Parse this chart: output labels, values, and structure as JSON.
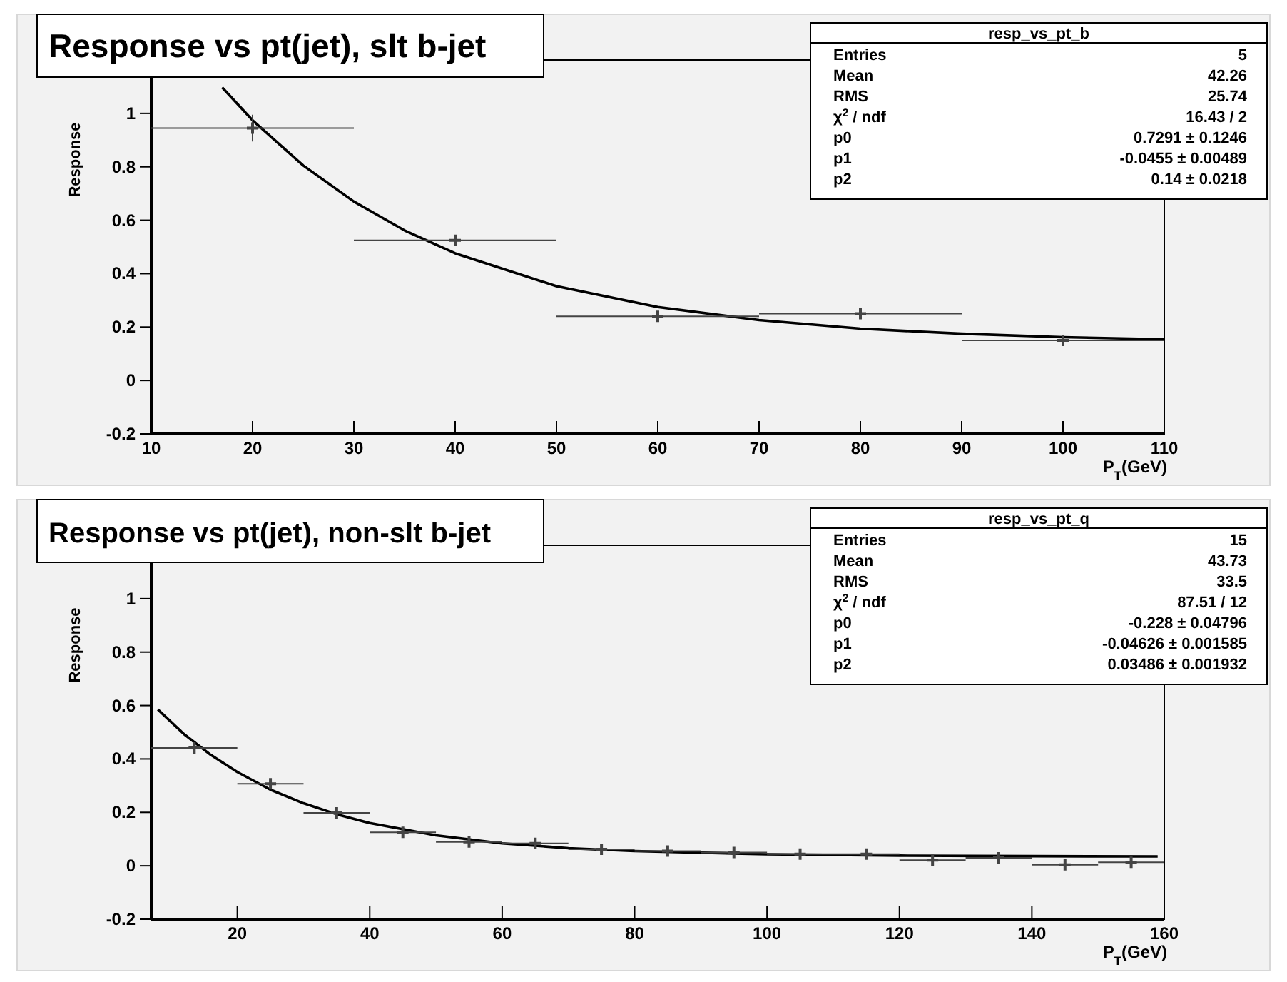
{
  "chart_data": [
    {
      "type": "scatter",
      "title": "Response vs pt(jet), slt b-jet",
      "xlabel": "P$_{T}$(GeV)",
      "ylabel": "Response",
      "xlim": [
        10,
        110
      ],
      "ylim": [
        -0.2,
        1.2
      ],
      "xticks": [
        10,
        20,
        30,
        40,
        50,
        60,
        70,
        80,
        90,
        100,
        110
      ],
      "yticks": [
        -0.2,
        0,
        0.2,
        0.4,
        0.6,
        0.8,
        1
      ],
      "grid": false,
      "marker": "cross",
      "series": [
        {
          "type": "scatter",
          "color": "#444444",
          "x": [
            20,
            40,
            60,
            80,
            100
          ],
          "values": [
            0.945,
            0.525,
            0.24,
            0.25,
            0.15
          ],
          "xerrors": [
            10,
            10,
            10,
            10,
            10
          ],
          "errors": [
            0.05,
            0.02,
            0.01,
            0.015,
            0.015
          ]
        },
        {
          "type": "line",
          "marker": "none",
          "color": "#000000",
          "x": [
            17,
            20,
            25,
            30,
            35,
            40,
            50,
            60,
            70,
            80,
            90,
            100,
            110
          ],
          "values": [
            1.097,
            0.974,
            0.805,
            0.67,
            0.562,
            0.476,
            0.353,
            0.275,
            0.226,
            0.194,
            0.175,
            0.162,
            0.154
          ]
        }
      ],
      "annotations": [
        "resp_vs_pt_b",
        "Entries",
        "5",
        "Mean",
        "42.26",
        "RMS",
        "25.74",
        "χ$^{2}$ / ndf",
        "16.43 / 2",
        "p0",
        "0.7291 ± 0.1246",
        "p1",
        "-0.0455 ± 0.00489",
        "p2",
        "0.14 ± 0.0218"
      ]
    },
    {
      "type": "scatter",
      "title": "Response vs pt(jet), non-slt b-jet",
      "xlabel": "P$_{T}$(GeV)",
      "ylabel": "Response",
      "xlim": [
        7,
        160
      ],
      "ylim": [
        -0.2,
        1.2
      ],
      "xticks": [
        20,
        40,
        60,
        80,
        100,
        120,
        140,
        160
      ],
      "yticks": [
        -0.2,
        0,
        0.2,
        0.4,
        0.6,
        0.8,
        1
      ],
      "grid": false,
      "marker": "cross",
      "series": [
        {
          "type": "scatter",
          "color": "#444444",
          "x": [
            13.5,
            25,
            35,
            45,
            55,
            65,
            75,
            85,
            95,
            105,
            115,
            125,
            135,
            145,
            155
          ],
          "values": [
            0.441,
            0.307,
            0.198,
            0.125,
            0.089,
            0.084,
            0.062,
            0.055,
            0.05,
            0.044,
            0.044,
            0.021,
            0.03,
            0.004,
            0.013
          ],
          "xerrors": [
            6.5,
            5,
            5,
            5,
            5,
            5,
            5,
            5,
            5,
            5,
            5,
            5,
            5,
            5,
            5
          ],
          "errors": [
            0.02,
            0.01,
            0.01,
            0.008,
            0.006,
            0.006,
            0.006,
            0.006,
            0.006,
            0.006,
            0.006,
            0.006,
            0.006,
            0.006,
            0.006
          ]
        },
        {
          "type": "line",
          "marker": "none",
          "color": "#000000",
          "x": [
            8,
            12,
            16,
            20,
            25,
            30,
            35,
            40,
            50,
            60,
            70,
            80,
            100,
            120,
            140,
            159
          ],
          "values": [
            0.585,
            0.492,
            0.415,
            0.351,
            0.285,
            0.234,
            0.193,
            0.16,
            0.114,
            0.084,
            0.066,
            0.055,
            0.043,
            0.038,
            0.036,
            0.035
          ]
        }
      ],
      "annotations": [
        "resp_vs_pt_q",
        "Entries",
        "15",
        "Mean",
        "43.73",
        "RMS",
        "33.5",
        "χ$^{2}$ / ndf",
        "87.51 / 12",
        "p0",
        "-0.228 ± 0.04796",
        "p1",
        "-0.04626 ± 0.001585",
        "p2",
        "0.03486 ± 0.001932"
      ]
    }
  ]
}
